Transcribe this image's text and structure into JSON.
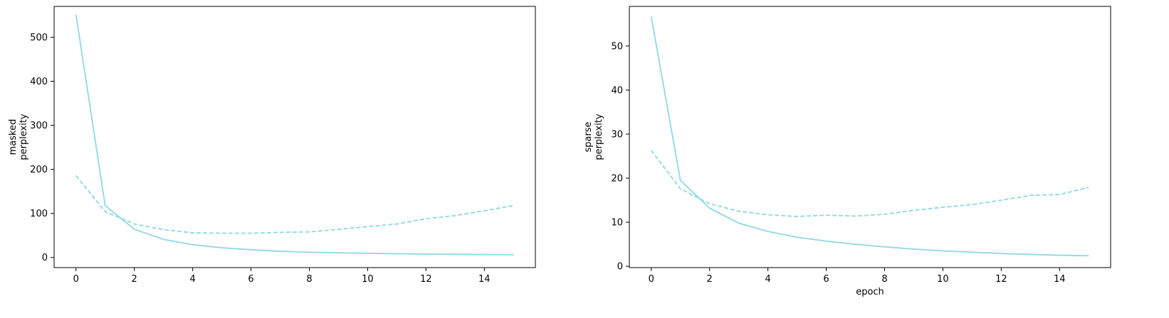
{
  "style": {
    "series_color": "#94d9e2",
    "axis_color": "#000000",
    "background": "#ffffff"
  },
  "chart_data": [
    {
      "type": "line",
      "title": "",
      "xlabel": "",
      "ylabel": "masked\nperplexity",
      "xlim": [
        -0.75,
        15.75
      ],
      "ylim": [
        -23,
        570
      ],
      "grid": false,
      "legend": "none",
      "xticks": [
        0,
        2,
        4,
        6,
        8,
        10,
        12,
        14
      ],
      "yticks": [
        0,
        100,
        200,
        300,
        400,
        500
      ],
      "x": [
        0,
        1,
        2,
        3,
        4,
        5,
        6,
        7,
        8,
        9,
        10,
        11,
        12,
        13,
        14,
        15
      ],
      "series": [
        {
          "linestyle": "solid",
          "values": [
            551,
            118,
            64,
            41,
            29,
            22,
            17.5,
            14,
            12,
            10.5,
            9.5,
            8.5,
            7.8,
            7.2,
            6.7,
            6.3
          ]
        },
        {
          "linestyle": "dashed",
          "values": [
            186,
            104,
            76,
            63,
            56,
            55,
            55,
            57,
            58,
            64,
            70,
            76,
            88,
            95,
            106,
            118
          ]
        }
      ]
    },
    {
      "type": "line",
      "title": "",
      "xlabel": "epoch",
      "ylabel": "sparse\nperplexity",
      "xlim": [
        -0.75,
        15.75
      ],
      "ylim": [
        -0.3,
        59
      ],
      "grid": false,
      "legend": "none",
      "xticks": [
        0,
        2,
        4,
        6,
        8,
        10,
        12,
        14
      ],
      "yticks": [
        0,
        10,
        20,
        30,
        40,
        50
      ],
      "x": [
        0,
        1,
        2,
        3,
        4,
        5,
        6,
        7,
        8,
        9,
        10,
        11,
        12,
        13,
        14,
        15
      ],
      "series": [
        {
          "linestyle": "solid",
          "values": [
            56.7,
            19.5,
            13.2,
            9.8,
            7.9,
            6.6,
            5.7,
            5.0,
            4.4,
            3.9,
            3.5,
            3.2,
            2.9,
            2.7,
            2.5,
            2.4
          ]
        },
        {
          "linestyle": "dashed",
          "values": [
            26.3,
            17.6,
            14.2,
            12.5,
            11.7,
            11.3,
            11.6,
            11.4,
            11.8,
            12.7,
            13.4,
            14.0,
            15.0,
            16.1,
            16.3,
            17.9
          ]
        }
      ]
    }
  ]
}
